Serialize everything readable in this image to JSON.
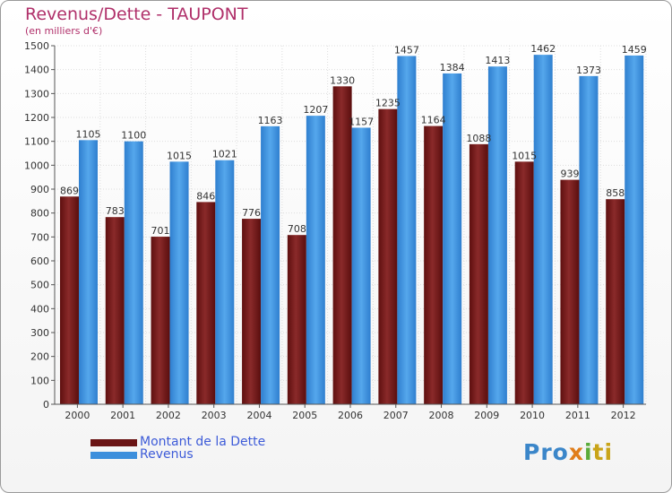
{
  "header": {
    "title": "Revenus/Dette - TAUPONT",
    "subtitle": "(en milliers d'€)"
  },
  "legend": {
    "dette_label": "Montant de la Dette",
    "revenus_label": "Revenus"
  },
  "logo": {
    "text": "Proxiti"
  },
  "colors": {
    "dette": "#7a1c1c",
    "revenus": "#3d8fdc",
    "title": "#b0306a",
    "legend_text": "#3d5bd8"
  },
  "chart_data": {
    "type": "bar",
    "title": "Revenus/Dette - TAUPONT",
    "subtitle": "(en milliers d'€)",
    "xlabel": "",
    "ylabel": "",
    "ylim": [
      0,
      1500
    ],
    "ytick_step": 100,
    "grid": true,
    "categories": [
      "2000",
      "2001",
      "2002",
      "2003",
      "2004",
      "2005",
      "2006",
      "2007",
      "2008",
      "2009",
      "2010",
      "2011",
      "2012"
    ],
    "series": [
      {
        "name": "Montant de la Dette",
        "color": "#7a1c1c",
        "values": [
          869,
          783,
          701,
          846,
          776,
          708,
          1330,
          1235,
          1164,
          1088,
          1015,
          939,
          858
        ]
      },
      {
        "name": "Revenus",
        "color": "#3d8fdc",
        "values": [
          1105,
          1100,
          1015,
          1021,
          1163,
          1207,
          1157,
          1457,
          1384,
          1413,
          1462,
          1373,
          1459
        ]
      }
    ],
    "legend_position": "bottom-left"
  }
}
